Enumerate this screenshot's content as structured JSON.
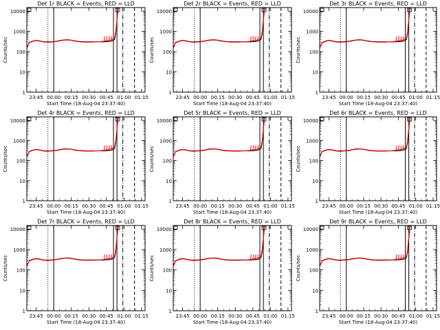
{
  "figure": {
    "xlabel": "Start Time (18-Aug-04 23:37:40)",
    "ylabel": "Counts/sec"
  },
  "chart_data": [
    {
      "type": "line",
      "title": "Det 1r BLACK = Events, RED = LLD"
    },
    {
      "type": "line",
      "title": "Det 2r BLACK = Events, RED = LLD"
    },
    {
      "type": "line",
      "title": "Det 3r BLACK = Events, RED = LLD"
    },
    {
      "type": "line",
      "title": "Det 4r BLACK = Events, RED = LLD"
    },
    {
      "type": "line",
      "title": "Det 5r BLACK = Events, RED = LLD"
    },
    {
      "type": "line",
      "title": "Det 6r BLACK = Events, RED = LLD"
    },
    {
      "type": "line",
      "title": "Det 7r BLACK = Events, RED = LLD"
    },
    {
      "type": "line",
      "title": "Det 8r BLACK = Events, RED = LLD"
    },
    {
      "type": "line",
      "title": "Det 9r BLACK = Events, RED = LLD"
    }
  ],
  "shared_axes": {
    "x_ticks_minutes": [
      8,
      23,
      38,
      53,
      68,
      83,
      98
    ],
    "x_tick_labels": [
      "23:45",
      "00:00",
      "00:15",
      "00:30",
      "00:45",
      "01:00",
      "01:15"
    ],
    "xlim_minutes": [
      0,
      101
    ],
    "y_scale": "log",
    "ylim": [
      1,
      15000
    ],
    "y_ticks": [
      1,
      10,
      100,
      1000,
      10000
    ],
    "y_tick_labels": [
      "1",
      "10",
      "100",
      "1000",
      "10000"
    ],
    "grid": false,
    "vertical_markers": [
      {
        "x": 18,
        "style": "dotted"
      },
      {
        "x": 23,
        "style": "solid"
      },
      {
        "x": 74,
        "style": "solid"
      },
      {
        "x": 77,
        "style": "solid"
      },
      {
        "x": 82,
        "style": "dash-dot"
      },
      {
        "x": 92,
        "style": "dashed"
      }
    ]
  },
  "series": {
    "events": {
      "name": "Events",
      "color": "#000000",
      "x": [
        0,
        2,
        5,
        8,
        11,
        14,
        17,
        20,
        23,
        26,
        29,
        32,
        35,
        38,
        41,
        44,
        47,
        50,
        53,
        56,
        59,
        62,
        65,
        68,
        71,
        73,
        75,
        76,
        77,
        78
      ],
      "y": [
        150,
        280,
        330,
        360,
        340,
        310,
        300,
        305,
        315,
        330,
        360,
        380,
        385,
        370,
        340,
        320,
        310,
        305,
        305,
        305,
        305,
        305,
        305,
        310,
        320,
        340,
        400,
        800,
        3500,
        13000
      ]
    },
    "lld": {
      "name": "LLD",
      "color": "#ff0000",
      "x": [
        0,
        2,
        5,
        8,
        11,
        14,
        17,
        20,
        23,
        26,
        29,
        32,
        35,
        38,
        41,
        44,
        47,
        50,
        53,
        56,
        59,
        62,
        65,
        68,
        71,
        73,
        75,
        76,
        77,
        78
      ],
      "y": [
        145,
        270,
        320,
        350,
        330,
        300,
        290,
        295,
        305,
        320,
        350,
        370,
        375,
        360,
        330,
        310,
        300,
        295,
        295,
        295,
        300,
        305,
        320,
        340,
        360,
        400,
        480,
        1000,
        4000,
        13500
      ]
    }
  }
}
